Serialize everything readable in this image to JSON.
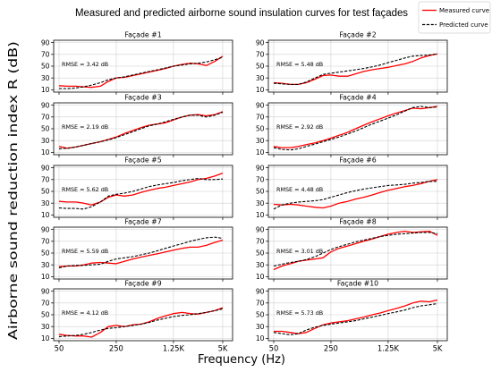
{
  "chart_data": {
    "type": "line",
    "title": "Measured and predicted airborne sound insulation curves for test façades",
    "xlabel": "Frequency (Hz)",
    "ylabel": "Airborne sound reduction index R (dB)",
    "xscale": "log",
    "x": [
      50,
      63,
      80,
      100,
      125,
      160,
      200,
      250,
      315,
      400,
      500,
      630,
      800,
      1000,
      1250,
      1600,
      2000,
      2500,
      3150,
      4000,
      5000
    ],
    "xlim": [
      43,
      6600
    ],
    "xticks": [
      {
        "value": 50,
        "label": "50"
      },
      {
        "value": 250,
        "label": "250"
      },
      {
        "value": 1250,
        "label": "1.25K"
      },
      {
        "value": 5000,
        "label": "5K"
      }
    ],
    "ylim": [
      6,
      94
    ],
    "yticks": [
      10,
      30,
      50,
      70,
      90
    ],
    "grid": true,
    "legend": {
      "placement": "top-right",
      "entries": [
        {
          "label": "Measured curve",
          "color": "#ff0000",
          "line_style": "solid"
        },
        {
          "label": "Predicted curve",
          "color": "#000000",
          "line_style": "dashed"
        }
      ]
    },
    "panels": [
      {
        "title": "Façade #1",
        "annotation": "RMSE = 3.42 dB",
        "measured": [
          17,
          16,
          16,
          15,
          14,
          16,
          24,
          30,
          31,
          34,
          37,
          40,
          43,
          46,
          50,
          53,
          55,
          54,
          51,
          58,
          67
        ],
        "predicted": [
          12,
          12,
          13,
          15,
          18,
          22,
          27,
          30,
          32,
          35,
          38,
          41,
          44,
          47,
          50,
          52,
          54,
          55,
          57,
          61,
          65
        ]
      },
      {
        "title": "Façade #2",
        "annotation": "RMSE = 5.48 dB",
        "measured": [
          22,
          21,
          19,
          19,
          22,
          28,
          34,
          35,
          33,
          33,
          37,
          41,
          44,
          46,
          48,
          51,
          54,
          58,
          64,
          68,
          71
        ],
        "predicted": [
          21,
          20,
          19,
          19,
          23,
          30,
          36,
          38,
          40,
          42,
          44,
          46,
          49,
          52,
          56,
          60,
          64,
          67,
          68,
          69,
          71
        ]
      },
      {
        "title": "Façade #3",
        "annotation": "RMSE = 2.19 dB",
        "measured": [
          20,
          17,
          19,
          22,
          25,
          28,
          32,
          36,
          42,
          47,
          52,
          56,
          58,
          60,
          65,
          70,
          73,
          74,
          72,
          74,
          79
        ],
        "predicted": [
          16,
          17,
          19,
          22,
          25,
          28,
          31,
          35,
          40,
          45,
          50,
          55,
          58,
          62,
          66,
          70,
          73,
          73,
          70,
          73,
          78
        ]
      },
      {
        "title": "Façade #4",
        "annotation": "RMSE = 2.92 dB",
        "measured": [
          20,
          18,
          18,
          20,
          23,
          26,
          30,
          34,
          39,
          44,
          50,
          56,
          62,
          67,
          72,
          77,
          81,
          85,
          84,
          86,
          88
        ],
        "predicted": [
          18,
          15,
          14,
          16,
          20,
          24,
          28,
          32,
          36,
          41,
          46,
          52,
          58,
          63,
          68,
          74,
          80,
          86,
          88,
          86,
          87
        ]
      },
      {
        "title": "Façade #5",
        "annotation": "RMSE = 5.62 dB",
        "measured": [
          33,
          32,
          32,
          30,
          27,
          32,
          40,
          44,
          42,
          44,
          48,
          52,
          55,
          57,
          60,
          63,
          66,
          70,
          72,
          76,
          81
        ],
        "predicted": [
          22,
          21,
          21,
          20,
          24,
          32,
          42,
          45,
          47,
          50,
          54,
          58,
          61,
          63,
          65,
          68,
          70,
          72,
          70,
          70,
          71
        ]
      },
      {
        "title": "Façade #6",
        "annotation": "RMSE = 4.48 dB",
        "measured": [
          28,
          27,
          28,
          27,
          25,
          23,
          22,
          25,
          30,
          33,
          37,
          40,
          44,
          48,
          52,
          55,
          58,
          60,
          63,
          67,
          70
        ],
        "predicted": [
          20,
          27,
          30,
          32,
          33,
          34,
          36,
          40,
          44,
          48,
          51,
          54,
          56,
          58,
          60,
          61,
          62,
          64,
          65,
          67,
          67
        ]
      },
      {
        "title": "Façade #7",
        "annotation": "RMSE = 5.59 dB",
        "measured": [
          27,
          28,
          28,
          30,
          33,
          34,
          33,
          32,
          36,
          40,
          43,
          46,
          49,
          52,
          55,
          58,
          60,
          60,
          63,
          68,
          72
        ],
        "predicted": [
          25,
          28,
          29,
          29,
          30,
          31,
          36,
          40,
          42,
          44,
          47,
          50,
          54,
          58,
          62,
          66,
          70,
          73,
          76,
          77,
          75
        ]
      },
      {
        "title": "Façade #8",
        "annotation": "RMSE = 3.01 dB",
        "measured": [
          22,
          28,
          32,
          36,
          38,
          40,
          42,
          52,
          58,
          62,
          66,
          70,
          74,
          78,
          82,
          85,
          87,
          85,
          86,
          87,
          80
        ],
        "predicted": [
          28,
          31,
          34,
          36,
          39,
          44,
          50,
          56,
          61,
          65,
          69,
          72,
          75,
          78,
          80,
          82,
          83,
          84,
          85,
          85,
          83
        ]
      },
      {
        "title": "Façade #9",
        "annotation": "RMSE = 4.12 dB",
        "measured": [
          17,
          15,
          14,
          14,
          12,
          20,
          30,
          32,
          30,
          33,
          34,
          38,
          44,
          48,
          52,
          54,
          52,
          51,
          54,
          57,
          62
        ],
        "predicted": [
          13,
          14,
          15,
          17,
          20,
          24,
          27,
          28,
          30,
          32,
          34,
          37,
          41,
          44,
          47,
          49,
          50,
          52,
          54,
          57,
          60
        ]
      },
      {
        "title": "Façade #10",
        "annotation": "RMSE = 5.73 dB",
        "measured": [
          22,
          22,
          20,
          18,
          20,
          27,
          33,
          36,
          38,
          40,
          43,
          46,
          50,
          53,
          57,
          61,
          65,
          70,
          73,
          72,
          75
        ],
        "predicted": [
          20,
          18,
          16,
          18,
          24,
          29,
          32,
          34,
          36,
          38,
          40,
          43,
          46,
          49,
          52,
          55,
          58,
          62,
          65,
          67,
          69
        ]
      }
    ]
  }
}
